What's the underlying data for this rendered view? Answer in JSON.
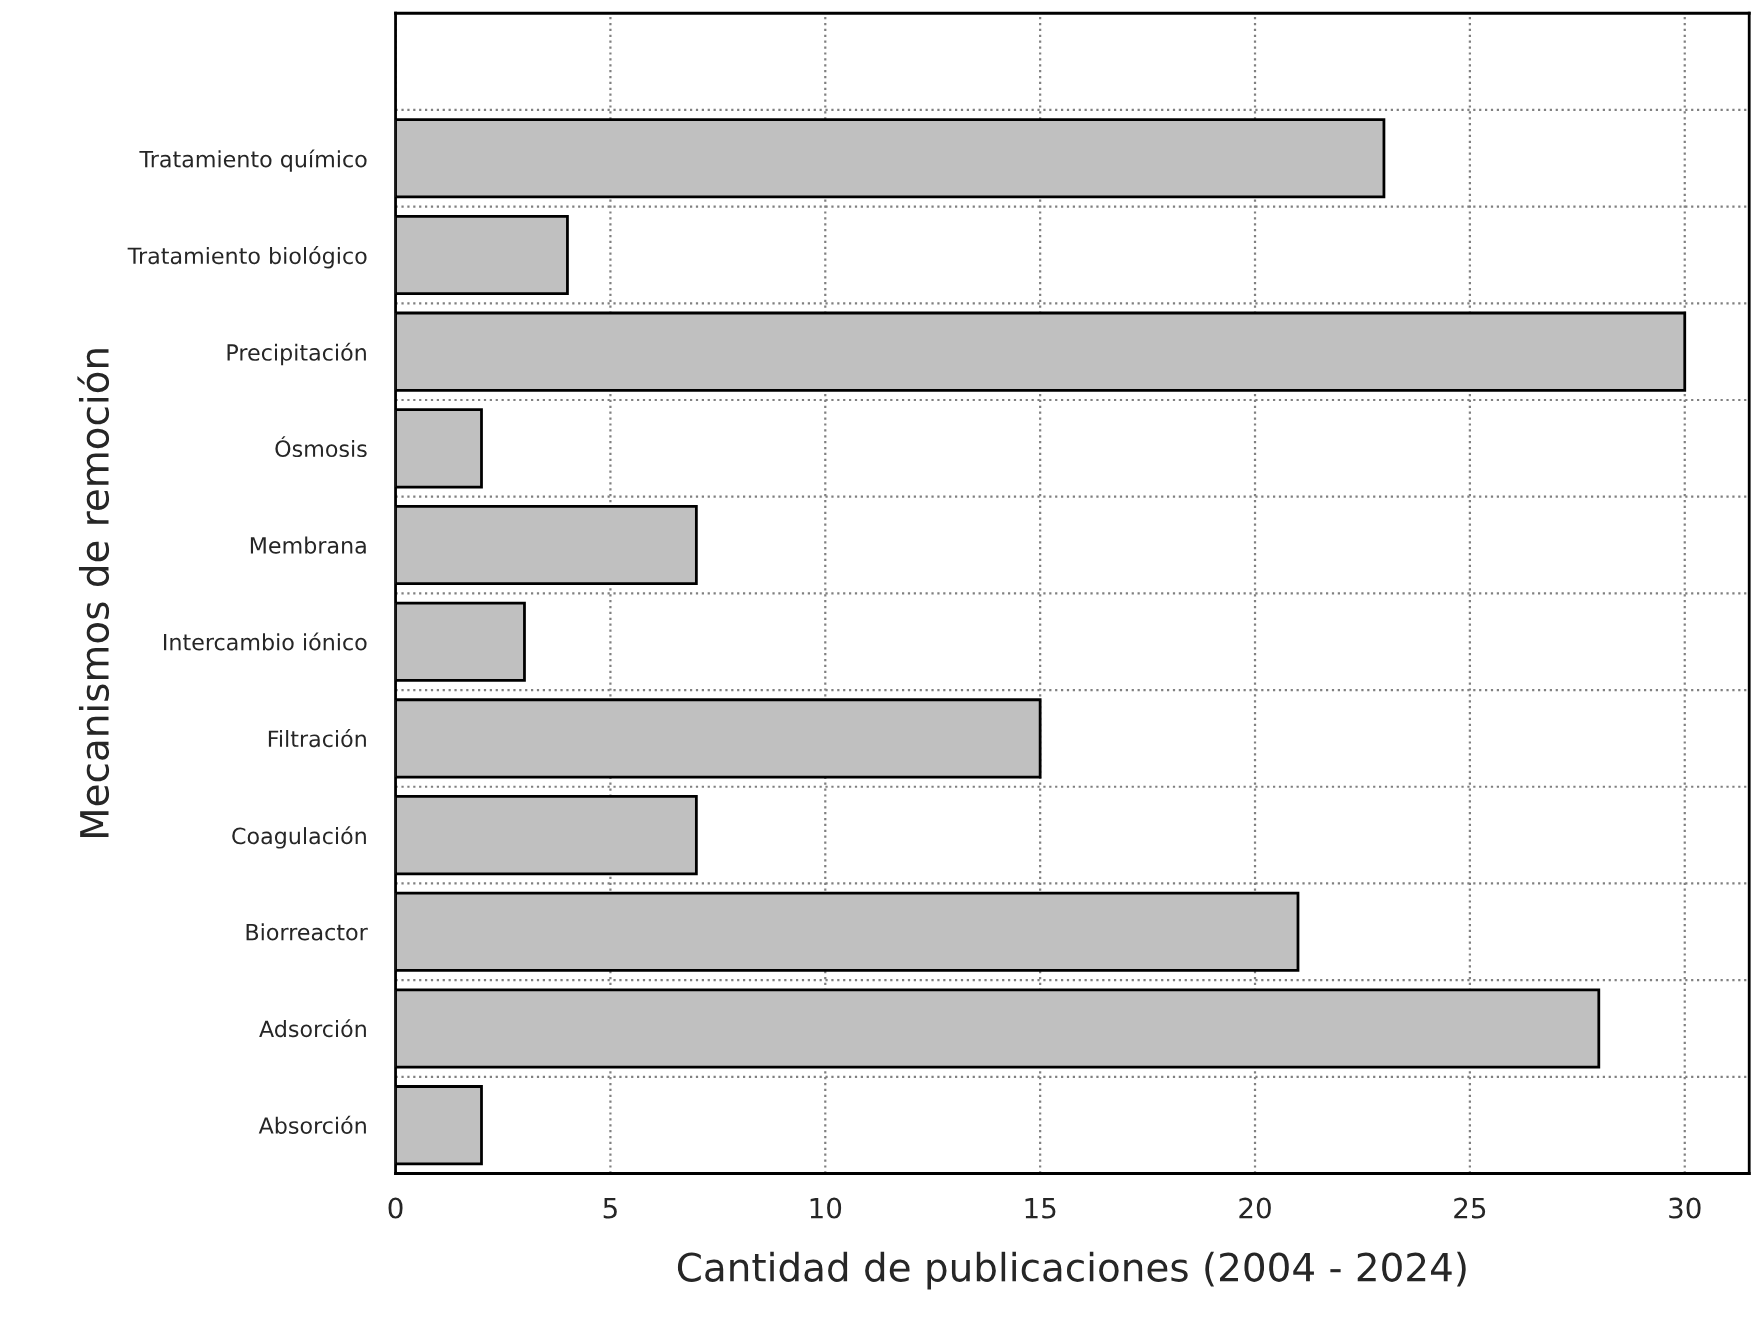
{
  "chart_data": {
    "type": "bar",
    "orientation": "horizontal",
    "xlabel": "Cantidad de publicaciones (2004 - 2024)",
    "ylabel": "Mecanismos de remoción",
    "categories": [
      "Tratamiento químico",
      "Tratamiento biológico",
      "Precipitación",
      "Ósmosis",
      "Membrana",
      "Intercambio iónico",
      "Filtración",
      "Coagulación",
      "Biorreactor",
      "Adsorción",
      "Absorción"
    ],
    "values": [
      23,
      4,
      30,
      2,
      7,
      3,
      15,
      7,
      21,
      28,
      2
    ],
    "color": "#c0c0c0",
    "xlim": [
      0,
      31.5
    ],
    "xticks": [
      0,
      5,
      10,
      15,
      20,
      25,
      30
    ],
    "grid": true,
    "legend": false
  }
}
